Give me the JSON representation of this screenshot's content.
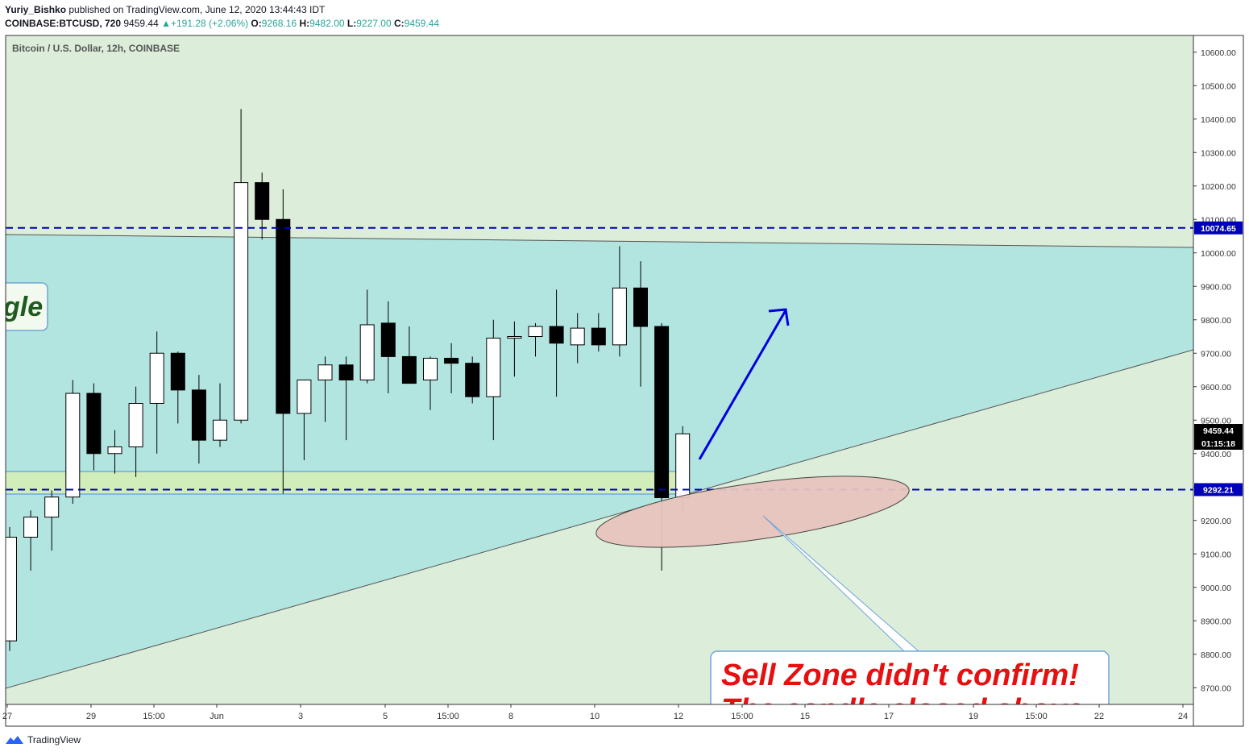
{
  "header": {
    "author": "Yuriy_Bishko",
    "published_text": "published on TradingView.com, June 12, 2020 13:44:43 IDT",
    "symbol": "COINBASE:BTCUSD, 720",
    "price": "9459.44",
    "change": "+191.28 (+2.06%)",
    "o_label": "O:",
    "o_value": "9268.16",
    "h_label": "H:",
    "h_value": "9482.00",
    "l_label": "L:",
    "l_value": "9227.00",
    "c_label": "C:",
    "c_value": "9459.44"
  },
  "colors": {
    "bg_green": "#dcedda",
    "triangle_fill": "#b2e5e0",
    "zone_fill": "#d4edb5",
    "ellipse_fill": "#e6c4bd",
    "arrow": "#0000dd",
    "dashed": "#0000bb",
    "sell_text": "#e61010"
  },
  "footer": {
    "brand": "TradingView"
  },
  "chart_data": {
    "type": "candlestick",
    "title": "Bitcoin / U.S. Dollar, 12h, COINBASE",
    "ylim": [
      8650,
      10650
    ],
    "y_ticks": [
      "10600.00",
      "10500.00",
      "10400.00",
      "10300.00",
      "10200.00",
      "10100.00",
      "10000.00",
      "9900.00",
      "9800.00",
      "9700.00",
      "9600.00",
      "9500.00",
      "9400.00",
      "9300.00",
      "9200.00",
      "9100.00",
      "9000.00",
      "8900.00",
      "8800.00",
      "8700.00"
    ],
    "x_ticks": [
      "27",
      "29",
      "15:00",
      "Jun",
      "3",
      "5",
      "15:00",
      "8",
      "10",
      "12",
      "15:00",
      "15",
      "17",
      "19",
      "15:00",
      "22",
      "24"
    ],
    "candles": [
      {
        "o": 8840,
        "h": 9180,
        "l": 8810,
        "c": 9150
      },
      {
        "o": 9150,
        "h": 9230,
        "l": 9050,
        "c": 9210
      },
      {
        "o": 9210,
        "h": 9290,
        "l": 9110,
        "c": 9270
      },
      {
        "o": 9270,
        "h": 9620,
        "l": 9250,
        "c": 9580
      },
      {
        "o": 9580,
        "h": 9610,
        "l": 9350,
        "c": 9400
      },
      {
        "o": 9400,
        "h": 9470,
        "l": 9340,
        "c": 9420
      },
      {
        "o": 9420,
        "h": 9600,
        "l": 9330,
        "c": 9550
      },
      {
        "o": 9550,
        "h": 9765,
        "l": 9400,
        "c": 9700
      },
      {
        "o": 9700,
        "h": 9705,
        "l": 9490,
        "c": 9590
      },
      {
        "o": 9590,
        "h": 9635,
        "l": 9370,
        "c": 9440
      },
      {
        "o": 9440,
        "h": 9610,
        "l": 9420,
        "c": 9500
      },
      {
        "o": 9500,
        "h": 10430,
        "l": 9490,
        "c": 10210
      },
      {
        "o": 10210,
        "h": 10240,
        "l": 10040,
        "c": 10100
      },
      {
        "o": 10100,
        "h": 10190,
        "l": 9280,
        "c": 9520
      },
      {
        "o": 9520,
        "h": 9620,
        "l": 9380,
        "c": 9620
      },
      {
        "o": 9620,
        "h": 9690,
        "l": 9495,
        "c": 9665
      },
      {
        "o": 9665,
        "h": 9690,
        "l": 9440,
        "c": 9620
      },
      {
        "o": 9620,
        "h": 9890,
        "l": 9610,
        "c": 9785
      },
      {
        "o": 9790,
        "h": 9855,
        "l": 9580,
        "c": 9690
      },
      {
        "o": 9690,
        "h": 9780,
        "l": 9610,
        "c": 9610
      },
      {
        "o": 9620,
        "h": 9690,
        "l": 9530,
        "c": 9685
      },
      {
        "o": 9685,
        "h": 9730,
        "l": 9580,
        "c": 9670
      },
      {
        "o": 9670,
        "h": 9690,
        "l": 9550,
        "c": 9570
      },
      {
        "o": 9570,
        "h": 9800,
        "l": 9440,
        "c": 9745
      },
      {
        "o": 9745,
        "h": 9795,
        "l": 9630,
        "c": 9750
      },
      {
        "o": 9750,
        "h": 9790,
        "l": 9690,
        "c": 9780
      },
      {
        "o": 9780,
        "h": 9890,
        "l": 9570,
        "c": 9730
      },
      {
        "o": 9725,
        "h": 9820,
        "l": 9670,
        "c": 9775
      },
      {
        "o": 9775,
        "h": 9820,
        "l": 9705,
        "c": 9725
      },
      {
        "o": 9725,
        "h": 10020,
        "l": 9690,
        "c": 9895
      },
      {
        "o": 9895,
        "h": 9975,
        "l": 9600,
        "c": 9780
      },
      {
        "o": 9780,
        "h": 9790,
        "l": 9050,
        "c": 9268
      },
      {
        "o": 9268,
        "h": 9482,
        "l": 9227,
        "c": 9459
      }
    ],
    "horizontal_lines": [
      {
        "price": 10074.65,
        "label": "10074.65"
      },
      {
        "price": 9292.21,
        "label": "9292.21"
      }
    ],
    "current_price_label": "9459.44",
    "countdown_label": "01:15:18",
    "annotations": {
      "partial_label": "gle",
      "callout_line1": "Sell Zone didn't confirm!",
      "callout_line2": "The candle closed above"
    }
  }
}
